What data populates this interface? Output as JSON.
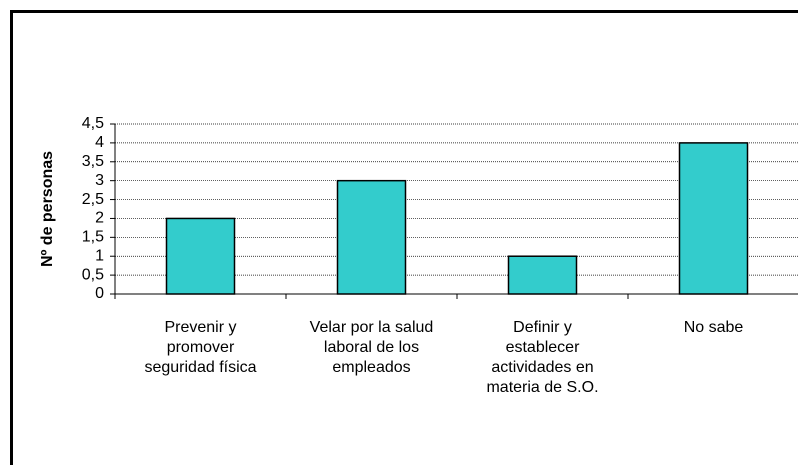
{
  "chart_data": {
    "type": "bar",
    "y_label": "Nº de personas",
    "categories": [
      "Prevenir y\npromover\nseguridad física",
      "Velar por la salud\nlaboral de los\nempleados",
      "Definir y\nestablecer\nactividades en\nmateria de S.O.",
      "No sabe"
    ],
    "values": [
      2,
      3,
      1,
      4
    ],
    "color": "#33cccc",
    "ylim": [
      0,
      4.5
    ],
    "yticks": [
      0,
      {
        "value": 0.5,
        "label": "0,5"
      },
      1,
      {
        "value": 1.5,
        "label": "1,5"
      },
      2,
      {
        "value": 2.5,
        "label": "2,5"
      },
      3,
      {
        "value": 3.5,
        "label": "3,5"
      },
      4,
      {
        "value": 4.5,
        "label": "4,5"
      }
    ],
    "grid": true
  }
}
